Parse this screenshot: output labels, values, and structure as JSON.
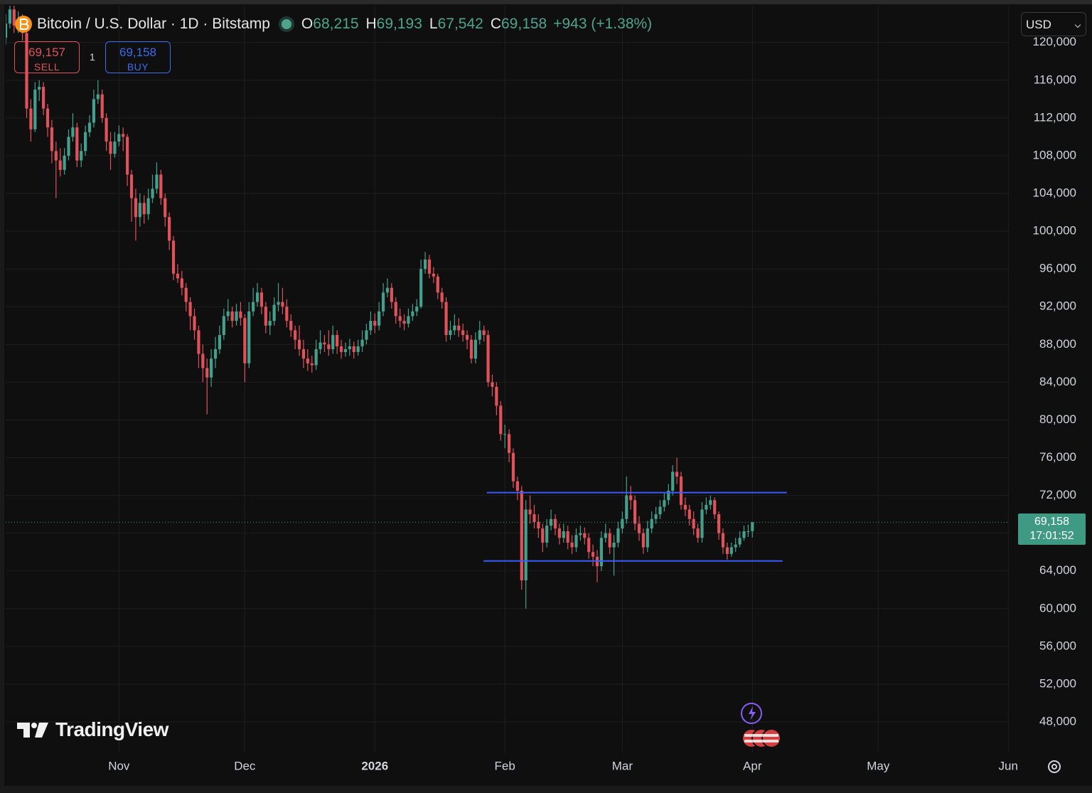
{
  "toolbar": {
    "symbol": "Bitcoin / U.S. Dollar · 1D · Bitstamp",
    "o_key": "O",
    "o": "68,215",
    "h_key": "H",
    "h": "69,193",
    "l_key": "L",
    "l": "67,542",
    "c_key": "C",
    "c": "69,158",
    "change": "+943 (+1.38%)"
  },
  "trade": {
    "sell_price": "69,157",
    "sell": "SELL",
    "qty": "1",
    "buy_price": "69,158",
    "buy": "BUY"
  },
  "currency": "USD",
  "price_tag": {
    "price": "69,158",
    "countdown": "17:01:52"
  },
  "branding": "TradingView",
  "chart_data": {
    "type": "candlestick",
    "up_color": "#44a08c",
    "down_color": "#e0525b",
    "grid": true,
    "xlim": [
      0,
      239.3
    ],
    "ylim": [
      44760,
      123900
    ],
    "xticks": [
      {
        "value": 27,
        "label": "Nov"
      },
      {
        "value": 57,
        "label": "Dec"
      },
      {
        "value": 88,
        "label": "2026"
      },
      {
        "value": 119,
        "label": "Feb"
      },
      {
        "value": 147,
        "label": "Mar"
      },
      {
        "value": 178,
        "label": "Apr"
      },
      {
        "value": 208,
        "label": "May"
      },
      {
        "value": 239,
        "label": "Jun"
      }
    ],
    "yticks": [
      {
        "value": 48000,
        "label": "48,000"
      },
      {
        "value": 52000,
        "label": "52,000"
      },
      {
        "value": 56000,
        "label": "56,000"
      },
      {
        "value": 60000,
        "label": "60,000"
      },
      {
        "value": 64000,
        "label": "64,000"
      },
      {
        "value": 68000,
        "label": "68,000"
      },
      {
        "value": 72000,
        "label": "72,000"
      },
      {
        "value": 76000,
        "label": "76,000"
      },
      {
        "value": 80000,
        "label": "80,000"
      },
      {
        "value": 84000,
        "label": "84,000"
      },
      {
        "value": 88000,
        "label": "88,000"
      },
      {
        "value": 92000,
        "label": "92,000"
      },
      {
        "value": 96000,
        "label": "96,000"
      },
      {
        "value": 100000,
        "label": "100,000"
      },
      {
        "value": 104000,
        "label": "104,000"
      },
      {
        "value": 108000,
        "label": "108,000"
      },
      {
        "value": 112000,
        "label": "112,000"
      },
      {
        "value": 116000,
        "label": "116,000"
      },
      {
        "value": 120000,
        "label": "120,000"
      }
    ],
    "open": [
      120500,
      122000,
      123500,
      121800,
      122500,
      121000,
      113000,
      110800,
      115000,
      115300,
      113000,
      111000,
      108500,
      107500,
      106500,
      108000,
      110000,
      111000,
      107500,
      108500,
      110500,
      111500,
      114000,
      114500,
      112000,
      109500,
      108200,
      109500,
      110300,
      110000,
      106000,
      103500,
      101500,
      103000,
      101800,
      103500,
      104500,
      106000,
      103500,
      101500,
      99000,
      95500,
      95000,
      94000,
      92500,
      91000,
      89500,
      87000,
      85500,
      84500,
      86500,
      87500,
      89000,
      91000,
      91500,
      90500,
      91500,
      90800,
      86000,
      91500,
      92500,
      93500,
      92000,
      90000,
      90500,
      92200,
      92500,
      92000,
      90500,
      89500,
      88500,
      87500,
      86500,
      86000,
      85800,
      87500,
      88200,
      88000,
      87500,
      89000,
      87800,
      87200,
      87500,
      87800,
      87200,
      87800,
      88500,
      89500,
      90500,
      90000,
      91500,
      93500,
      94000,
      92500,
      91000,
      90500,
      90200,
      91000,
      91500,
      92000,
      96000,
      97000,
      95500,
      95200,
      93500,
      92500,
      89000,
      89500,
      90000,
      89500,
      89000,
      88500,
      86500,
      88500,
      89500,
      89000,
      84000,
      83500,
      81500,
      78500,
      78500,
      76500,
      73500,
      72500,
      63000,
      70500,
      70000,
      69200,
      68500,
      67000,
      68800,
      69500,
      68500,
      67500,
      68200,
      67000,
      66500,
      67800,
      68000,
      67500,
      66000,
      65500,
      64500,
      67500,
      68000,
      66500,
      67000,
      68500,
      69500,
      72000,
      71500,
      69000,
      68000,
      66500,
      68500,
      69500,
      70000,
      70800,
      71500,
      72500,
      74500,
      74000,
      71000,
      70500,
      69500,
      68500,
      67500,
      70500,
      71000,
      71500,
      70000,
      68000,
      66500,
      65800,
      66500,
      66800,
      67500,
      68200,
      68215
    ],
    "high": [
      123000,
      124200,
      124000,
      123300,
      123000,
      121500,
      114000,
      115800,
      116000,
      115800,
      113500,
      111800,
      109500,
      108800,
      108800,
      110800,
      112500,
      111500,
      109300,
      111200,
      112300,
      115000,
      116000,
      115000,
      112500,
      110500,
      110500,
      111200,
      111000,
      110300,
      106500,
      104500,
      104000,
      103800,
      104500,
      106000,
      107300,
      106500,
      104000,
      102000,
      99500,
      96500,
      95800,
      94500,
      93000,
      91800,
      90000,
      88000,
      86500,
      87500,
      88800,
      90000,
      91800,
      92800,
      92000,
      92300,
      92500,
      91200,
      92500,
      94000,
      94500,
      94000,
      92500,
      91500,
      93000,
      94500,
      94000,
      92800,
      91200,
      90000,
      90000,
      88500,
      87500,
      86800,
      88500,
      89500,
      89000,
      89500,
      90000,
      89500,
      88500,
      88200,
      88600,
      88300,
      88500,
      89500,
      90200,
      91500,
      91300,
      92500,
      94500,
      95000,
      94500,
      93000,
      91800,
      91200,
      91800,
      92300,
      92800,
      97000,
      97800,
      97500,
      96200,
      95500,
      94000,
      93000,
      90500,
      91200,
      90800,
      90200,
      89500,
      89000,
      89300,
      90500,
      90000,
      89500,
      84800,
      84000,
      82000,
      79500,
      79000,
      77000,
      74000,
      73000,
      71500,
      72000,
      71000,
      70000,
      69000,
      69500,
      70500,
      70000,
      69000,
      69000,
      68800,
      67800,
      68500,
      68800,
      68600,
      68000,
      66800,
      66200,
      68200,
      69000,
      68500,
      67800,
      69200,
      70300,
      74000,
      73000,
      72000,
      69800,
      68500,
      69300,
      70300,
      70800,
      71500,
      72300,
      73200,
      75200,
      76000,
      74500,
      71800,
      71000,
      70300,
      69000,
      71300,
      71800,
      72000,
      71800,
      70300,
      68500,
      67000,
      67000,
      67500,
      68200,
      68800,
      68900,
      69193
    ],
    "low": [
      119800,
      121500,
      121000,
      121000,
      120200,
      112000,
      109500,
      110500,
      113800,
      112300,
      110000,
      107200,
      103500,
      105800,
      106000,
      107500,
      109500,
      106800,
      106800,
      108000,
      110000,
      111000,
      113500,
      111500,
      108500,
      106500,
      107800,
      109000,
      108500,
      104800,
      101000,
      99000,
      100500,
      100800,
      101200,
      103000,
      104000,
      102800,
      100500,
      98000,
      94800,
      94500,
      93200,
      91500,
      89500,
      88500,
      85500,
      84000,
      80600,
      83500,
      85500,
      87000,
      88500,
      90500,
      89800,
      90000,
      90000,
      84000,
      85500,
      91000,
      92000,
      91200,
      89200,
      89000,
      90000,
      91500,
      91200,
      89800,
      88800,
      87500,
      86800,
      85500,
      85200,
      85000,
      85300,
      87000,
      87200,
      86800,
      87000,
      87000,
      86500,
      86700,
      86800,
      86500,
      86800,
      87200,
      88000,
      89000,
      89200,
      89500,
      91000,
      93000,
      91800,
      90200,
      89800,
      89500,
      89800,
      90500,
      91000,
      91800,
      95500,
      95000,
      94500,
      92800,
      91800,
      88300,
      88500,
      89000,
      88800,
      88300,
      87500,
      86000,
      86000,
      88000,
      88300,
      83500,
      82500,
      80500,
      77800,
      77000,
      75500,
      72800,
      71500,
      62000,
      60000,
      69000,
      68500,
      67500,
      66000,
      66500,
      68300,
      67800,
      66800,
      67000,
      66300,
      65800,
      66000,
      67200,
      66800,
      65300,
      64500,
      62800,
      64000,
      67000,
      65800,
      63500,
      66500,
      68000,
      69000,
      70500,
      68300,
      67200,
      65800,
      66000,
      68000,
      69000,
      69500,
      70300,
      71000,
      72000,
      73200,
      70500,
      69800,
      68800,
      67800,
      67000,
      67000,
      70000,
      70500,
      69500,
      67300,
      65800,
      65200,
      65500,
      66000,
      66500,
      67200,
      67600,
      67542
    ],
    "close": [
      122000,
      123500,
      121800,
      122500,
      121000,
      113000,
      110800,
      115000,
      115300,
      113000,
      111000,
      108500,
      107500,
      106500,
      108000,
      110000,
      111000,
      107500,
      108500,
      110500,
      111500,
      114000,
      114500,
      112000,
      109500,
      108200,
      109500,
      110300,
      110000,
      106000,
      103500,
      101500,
      103000,
      101800,
      103500,
      104500,
      106000,
      103500,
      101500,
      99000,
      95500,
      95000,
      94000,
      92500,
      91000,
      89500,
      87000,
      85500,
      84500,
      86500,
      87500,
      89000,
      91000,
      91500,
      90500,
      91500,
      90800,
      86000,
      91500,
      92500,
      93500,
      92000,
      90000,
      90500,
      92200,
      92500,
      92000,
      90500,
      89500,
      88500,
      87500,
      86500,
      86000,
      85800,
      87500,
      88200,
      88000,
      87500,
      89000,
      87800,
      87200,
      87500,
      87800,
      87200,
      87800,
      88500,
      89500,
      90500,
      90000,
      91500,
      93500,
      94000,
      92500,
      91000,
      90500,
      90200,
      91000,
      91500,
      92000,
      96000,
      97000,
      95500,
      95200,
      93500,
      92500,
      89000,
      89500,
      90000,
      89500,
      89000,
      88500,
      86500,
      88500,
      89500,
      89000,
      84000,
      83500,
      81500,
      78500,
      78500,
      76500,
      73500,
      72500,
      63000,
      70500,
      70000,
      69200,
      68500,
      67000,
      68800,
      69500,
      68500,
      67500,
      68200,
      67000,
      66500,
      67800,
      68000,
      67500,
      66000,
      65500,
      64500,
      67500,
      68000,
      66500,
      67000,
      68500,
      69500,
      72000,
      71500,
      69000,
      68000,
      66500,
      68500,
      69500,
      70000,
      70800,
      71500,
      72500,
      74500,
      74000,
      71000,
      70500,
      69500,
      68500,
      67500,
      70500,
      71000,
      71500,
      70000,
      68000,
      66500,
      65800,
      66500,
      66800,
      67500,
      68200,
      68200,
      69158
    ],
    "lines": [
      {
        "color": "#3d5afe",
        "y": 72300,
        "x": [
          114.7,
          186.2
        ]
      },
      {
        "color": "#3d5afe",
        "y": 65050,
        "x": [
          113.9,
          185.2
        ]
      }
    ]
  }
}
